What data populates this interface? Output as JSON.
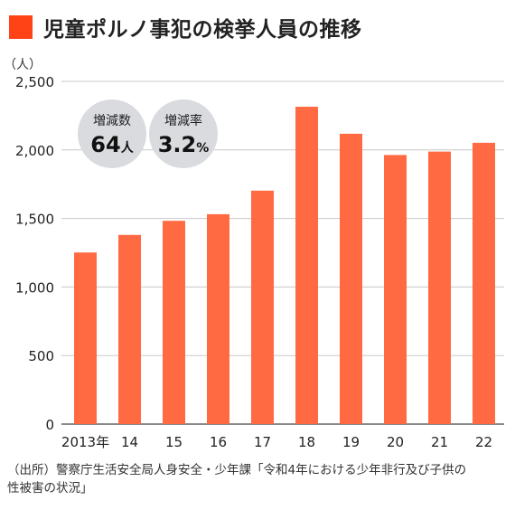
{
  "title": "児童ポルノ事犯の検挙人員の推移",
  "title_marker_color": "#ff4316",
  "badges": [
    {
      "label": "増減数",
      "number": "64",
      "unit": "人"
    },
    {
      "label": "増減率",
      "number": "3.2",
      "unit": "%"
    }
  ],
  "source_lines": [
    "（出所）警察庁生活安全局人身安全・少年課「令和4年における少年非行及び子供の",
    "性被害の状況」"
  ],
  "chart_data": {
    "type": "bar",
    "categories": [
      "2013年",
      "14",
      "15",
      "16",
      "17",
      "18",
      "19",
      "20",
      "21",
      "22"
    ],
    "values": [
      1252,
      1380,
      1483,
      1531,
      1703,
      2315,
      2118,
      1963,
      1988,
      2052
    ],
    "title": "児童ポルノ事犯の検挙人員の推移",
    "ylabel": "（人）",
    "xlabel": "",
    "ylim": [
      0,
      2500
    ],
    "yticks": [
      0,
      500,
      1000,
      1500,
      2000,
      2500
    ],
    "ytick_labels": [
      "0",
      "500",
      "1,000",
      "1,500",
      "2,000",
      "2,500"
    ],
    "grid": true,
    "bar_color": "#ff6a42",
    "grid_color": "#c8c8c8",
    "badge_color": "#d9dbdf"
  }
}
